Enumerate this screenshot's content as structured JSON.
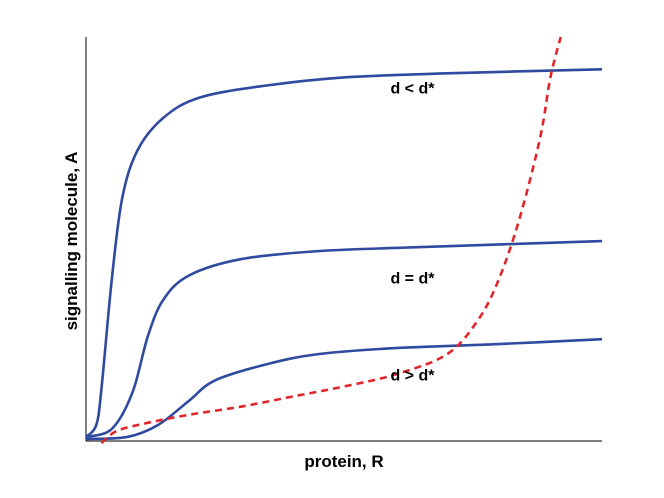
{
  "chart_data": {
    "type": "line",
    "title": "",
    "xlabel": "protein, R",
    "ylabel": "signalling molecule, A",
    "xlim": [
      0,
      1
    ],
    "ylim": [
      0,
      1
    ],
    "grid": false,
    "ticks": false,
    "colors": {
      "activation_curves": "#2f4a9e",
      "nullcline": "#e0262b",
      "axes": "#000000"
    },
    "series": [
      {
        "label": "d < d*",
        "style": "solid",
        "color": "#2f4a9e",
        "points": [
          [
            0.0,
            0.01
          ],
          [
            0.02,
            0.04
          ],
          [
            0.03,
            0.13
          ],
          [
            0.05,
            0.4
          ],
          [
            0.07,
            0.6
          ],
          [
            0.1,
            0.72
          ],
          [
            0.15,
            0.8
          ],
          [
            0.22,
            0.85
          ],
          [
            0.35,
            0.88
          ],
          [
            0.5,
            0.9
          ],
          [
            0.7,
            0.91
          ],
          [
            1.0,
            0.92
          ]
        ]
      },
      {
        "label": "d = d*",
        "style": "solid",
        "color": "#2f4a9e",
        "points": [
          [
            0.0,
            0.01
          ],
          [
            0.05,
            0.03
          ],
          [
            0.09,
            0.12
          ],
          [
            0.12,
            0.26
          ],
          [
            0.15,
            0.35
          ],
          [
            0.2,
            0.41
          ],
          [
            0.3,
            0.45
          ],
          [
            0.45,
            0.47
          ],
          [
            0.65,
            0.48
          ],
          [
            1.0,
            0.495
          ]
        ]
      },
      {
        "label": "d > d*",
        "style": "solid",
        "color": "#2f4a9e",
        "points": [
          [
            0.0,
            0.005
          ],
          [
            0.08,
            0.01
          ],
          [
            0.14,
            0.04
          ],
          [
            0.2,
            0.1
          ],
          [
            0.25,
            0.15
          ],
          [
            0.35,
            0.19
          ],
          [
            0.45,
            0.215
          ],
          [
            0.6,
            0.23
          ],
          [
            0.8,
            0.24
          ],
          [
            1.0,
            0.252
          ]
        ]
      },
      {
        "label": "",
        "style": "dashed",
        "color": "#e0262b",
        "points": [
          [
            0.03,
            -0.005
          ],
          [
            0.06,
            0.025
          ],
          [
            0.12,
            0.045
          ],
          [
            0.2,
            0.065
          ],
          [
            0.3,
            0.085
          ],
          [
            0.4,
            0.11
          ],
          [
            0.5,
            0.135
          ],
          [
            0.6,
            0.165
          ],
          [
            0.7,
            0.215
          ],
          [
            0.76,
            0.3
          ],
          [
            0.8,
            0.4
          ],
          [
            0.84,
            0.55
          ],
          [
            0.88,
            0.75
          ],
          [
            0.9,
            0.9
          ],
          [
            0.92,
            1.0
          ]
        ]
      }
    ],
    "annotations": [
      {
        "text": "d < d*",
        "x": 0.59,
        "y": 0.86
      },
      {
        "text": "d = d*",
        "x": 0.59,
        "y": 0.39
      },
      {
        "text": "d > d*",
        "x": 0.59,
        "y": 0.15
      }
    ]
  }
}
